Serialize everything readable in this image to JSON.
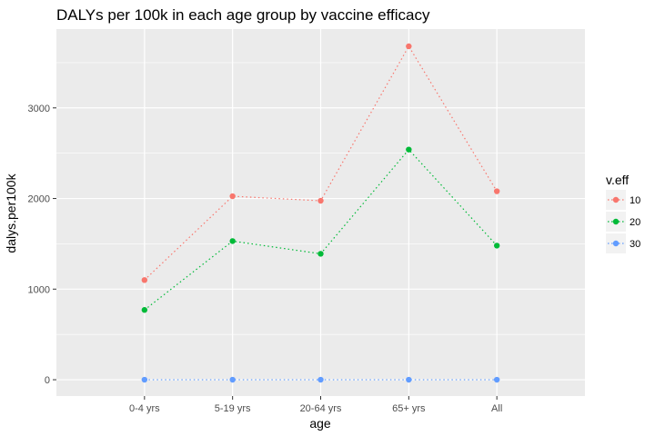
{
  "chart_data": {
    "type": "line",
    "title": "DALYs per 100k in each age group by vaccine efficacy",
    "xlabel": "age",
    "ylabel": "dalys.per100k",
    "categories": [
      "0-4 yrs",
      "5-19 yrs",
      "20-64 yrs",
      "65+ yrs",
      "All"
    ],
    "ylim": [
      -180,
      3870
    ],
    "yticks": [
      0,
      1000,
      2000,
      3000
    ],
    "grid": true,
    "line_style": "dotted",
    "legend": {
      "title": "v.eff",
      "placement": "right"
    },
    "series": [
      {
        "name": "10",
        "color": "#F8766D",
        "values": [
          1100,
          2025,
          1975,
          3680,
          2080
        ]
      },
      {
        "name": "20",
        "color": "#00BA38",
        "values": [
          770,
          1530,
          1390,
          2540,
          1480
        ]
      },
      {
        "name": "30",
        "color": "#619CFF",
        "values": [
          0,
          0,
          0,
          0,
          0
        ]
      }
    ]
  }
}
